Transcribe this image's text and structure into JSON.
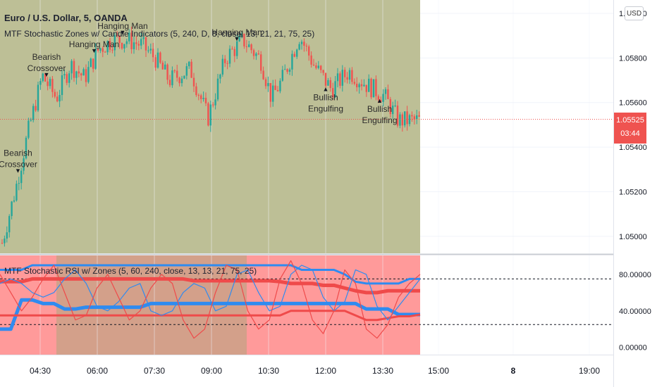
{
  "colors": {
    "upper_bg": "#bdbf96",
    "lower_bg_left": "#ff9a9a",
    "lower_bg_mid": "#d3a08a",
    "candle_up": "#26a69a",
    "candle_down": "#ef5350",
    "blue_line": "#2f8bf0",
    "red_line": "#ef4a4a"
  },
  "symbol_title": "Euro / U.S. Dollar, 5, OANDA",
  "indicator1_title": "MTF Stochastic Zones w/ Candle Indicators (5, 240, D, 8, close, 13, 21, 21, 75, 25)",
  "indicator2_title": "MTF Stochastic RSI w/ Zones (5, 60, 240, close, 13, 13, 21, 75, 25)",
  "currency_button": "USD",
  "price_tag": {
    "price": "1.05525",
    "countdown": "03:44"
  },
  "chart_data": [
    {
      "type": "candlestick",
      "y_ticks": [
        "1.05000",
        "1.05200",
        "1.05400",
        "1.05600",
        "1.05800",
        "1.06000"
      ],
      "ylim": [
        1.0493,
        1.0606
      ],
      "last_price": 1.05525,
      "annotations": [
        {
          "text": [
            "Bearish",
            "Crossover"
          ],
          "marker": "▼",
          "time": "03:55"
        },
        {
          "text": [
            "Bearish",
            "Crossover"
          ],
          "marker": "▼",
          "time": "04:40"
        },
        {
          "text": [
            "Hanging Man"
          ],
          "marker": "▼",
          "time": "06:40"
        },
        {
          "text": [
            "Hanging Man"
          ],
          "marker": "▼",
          "time": "05:55"
        },
        {
          "text": [
            "Hanging Man"
          ],
          "marker": "▼",
          "time": "09:40"
        },
        {
          "text": [
            "Bullish",
            "Engulfing"
          ],
          "marker": "▲",
          "time": "12:00"
        },
        {
          "text": [
            "Bullish",
            "Engulfing"
          ],
          "marker": "▲",
          "time": "13:25"
        }
      ]
    },
    {
      "type": "line",
      "y_ticks": [
        "0.00000",
        "40.00000",
        "80.00000"
      ],
      "ylim": [
        -8,
        100
      ],
      "levels": [
        75,
        25
      ],
      "series": [
        {
          "values": [
            20,
            20,
            52,
            52,
            48,
            48,
            42,
            42,
            44,
            44,
            44,
            44,
            44,
            44,
            48,
            48,
            48,
            48,
            48,
            48,
            48,
            48,
            48,
            48,
            48,
            48,
            48,
            48,
            48,
            48,
            48,
            48,
            48,
            48,
            42,
            42,
            42,
            36,
            36,
            36
          ]
        },
        {
          "values": [
            85,
            85,
            85,
            90,
            90,
            90,
            90,
            90,
            90,
            90,
            90,
            90,
            90,
            90,
            90,
            90,
            90,
            90,
            90,
            90,
            90,
            90,
            90,
            90,
            90,
            90,
            90,
            90,
            85,
            85,
            85,
            85,
            80,
            72,
            70,
            70,
            70,
            70,
            75,
            75
          ]
        },
        {
          "values": [
            72,
            72,
            72,
            75,
            75,
            75,
            75,
            75,
            75,
            75,
            75,
            75,
            75,
            75,
            75,
            75,
            75,
            75,
            73,
            73,
            73,
            73,
            73,
            73,
            73,
            73,
            72,
            70,
            70,
            70,
            68,
            68,
            65,
            62,
            60,
            60,
            62,
            62,
            62,
            62
          ]
        },
        {
          "values": [
            35,
            35,
            35,
            35,
            35,
            35,
            35,
            35,
            35,
            35,
            35,
            35,
            35,
            35,
            35,
            35,
            35,
            35,
            35,
            35,
            35,
            35,
            35,
            35,
            35,
            35,
            35,
            40,
            40,
            40,
            40,
            40,
            40,
            35,
            30,
            30,
            32,
            34,
            34,
            36
          ]
        },
        {
          "values": [
            70,
            75,
            70,
            60,
            55,
            60,
            75,
            85,
            70,
            45,
            40,
            50,
            65,
            70,
            40,
            35,
            40,
            60,
            70,
            65,
            40,
            45,
            80,
            85,
            60,
            40,
            45,
            80,
            90,
            85,
            55,
            40,
            50,
            85,
            80,
            45,
            30,
            45,
            60,
            75
          ]
        },
        {
          "values": [
            80,
            60,
            40,
            55,
            75,
            90,
            60,
            30,
            35,
            65,
            80,
            55,
            30,
            40,
            65,
            80,
            70,
            30,
            10,
            20,
            60,
            90,
            85,
            40,
            20,
            30,
            75,
            95,
            70,
            30,
            15,
            40,
            85,
            70,
            20,
            10,
            25,
            55,
            70,
            80
          ]
        }
      ]
    }
  ],
  "x_axis": {
    "labels": [
      "04:30",
      "06:00",
      "07:30",
      "09:00",
      "10:30",
      "12:00",
      "13:30",
      "15:00",
      "8",
      "19:00"
    ]
  }
}
